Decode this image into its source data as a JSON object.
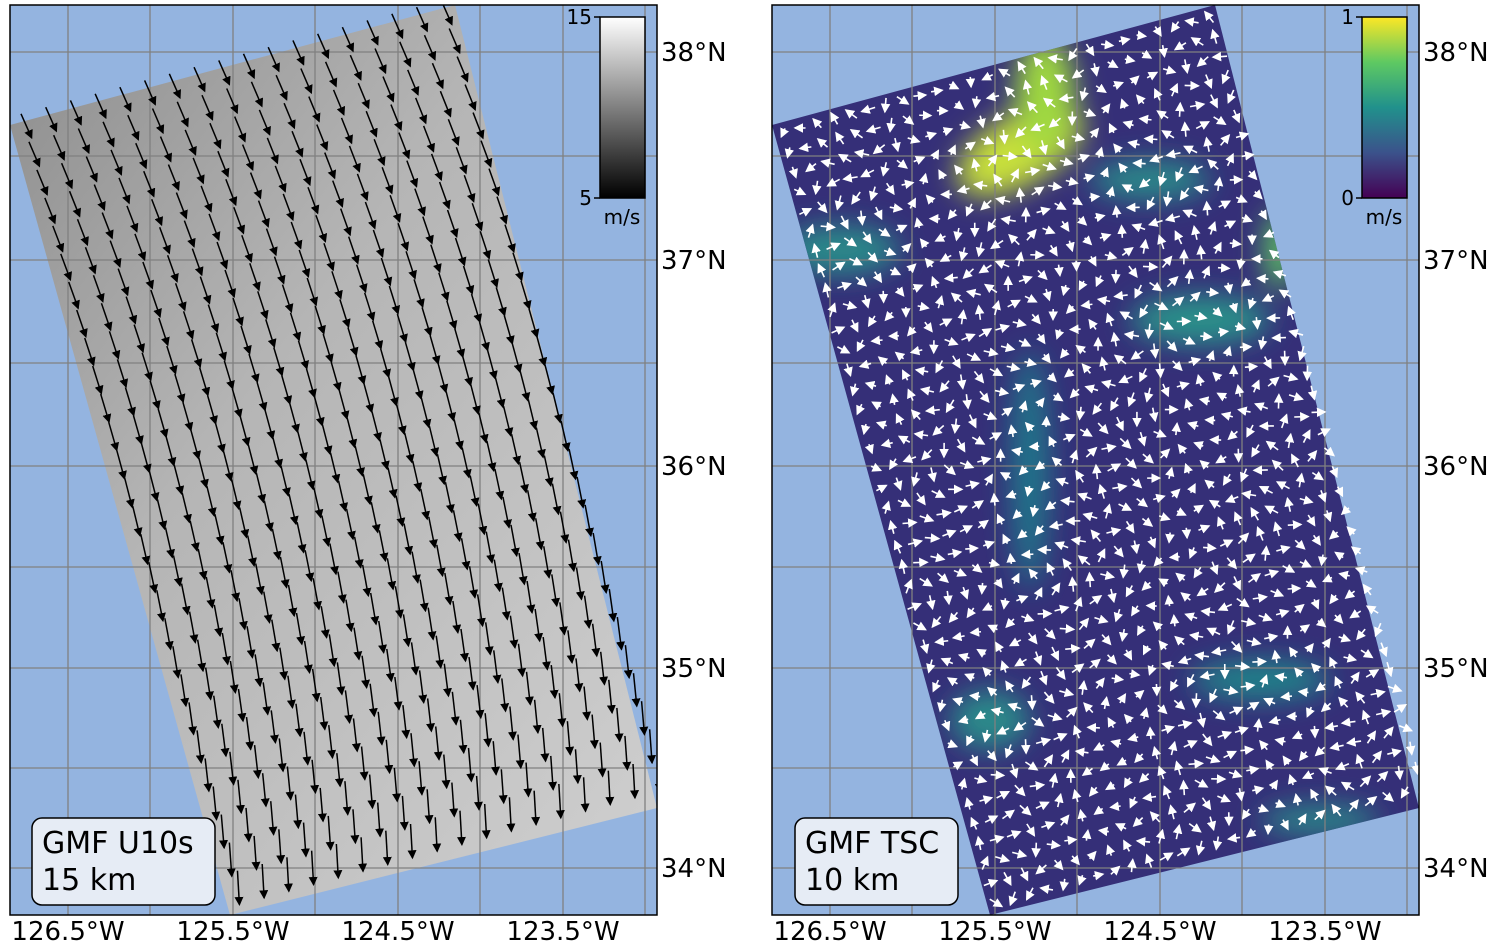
{
  "panels": [
    {
      "label": [
        "GMF U10s",
        "15 km"
      ],
      "colorbar": {
        "lim": [
          5,
          15
        ],
        "ticks": [
          5,
          15
        ],
        "unit": "m/s"
      }
    },
    {
      "label": [
        "GMF TSC",
        "10 km"
      ],
      "colorbar": {
        "lim": [
          0,
          1
        ],
        "ticks": [
          0,
          1
        ],
        "unit": "m/s"
      }
    }
  ],
  "lat_labels": [
    "38°N",
    "37°N",
    "36°N",
    "35°N",
    "34°N"
  ],
  "lon_labels": [
    "126.5°W",
    "125.5°W",
    "124.5°W",
    "123.5°W"
  ]
}
